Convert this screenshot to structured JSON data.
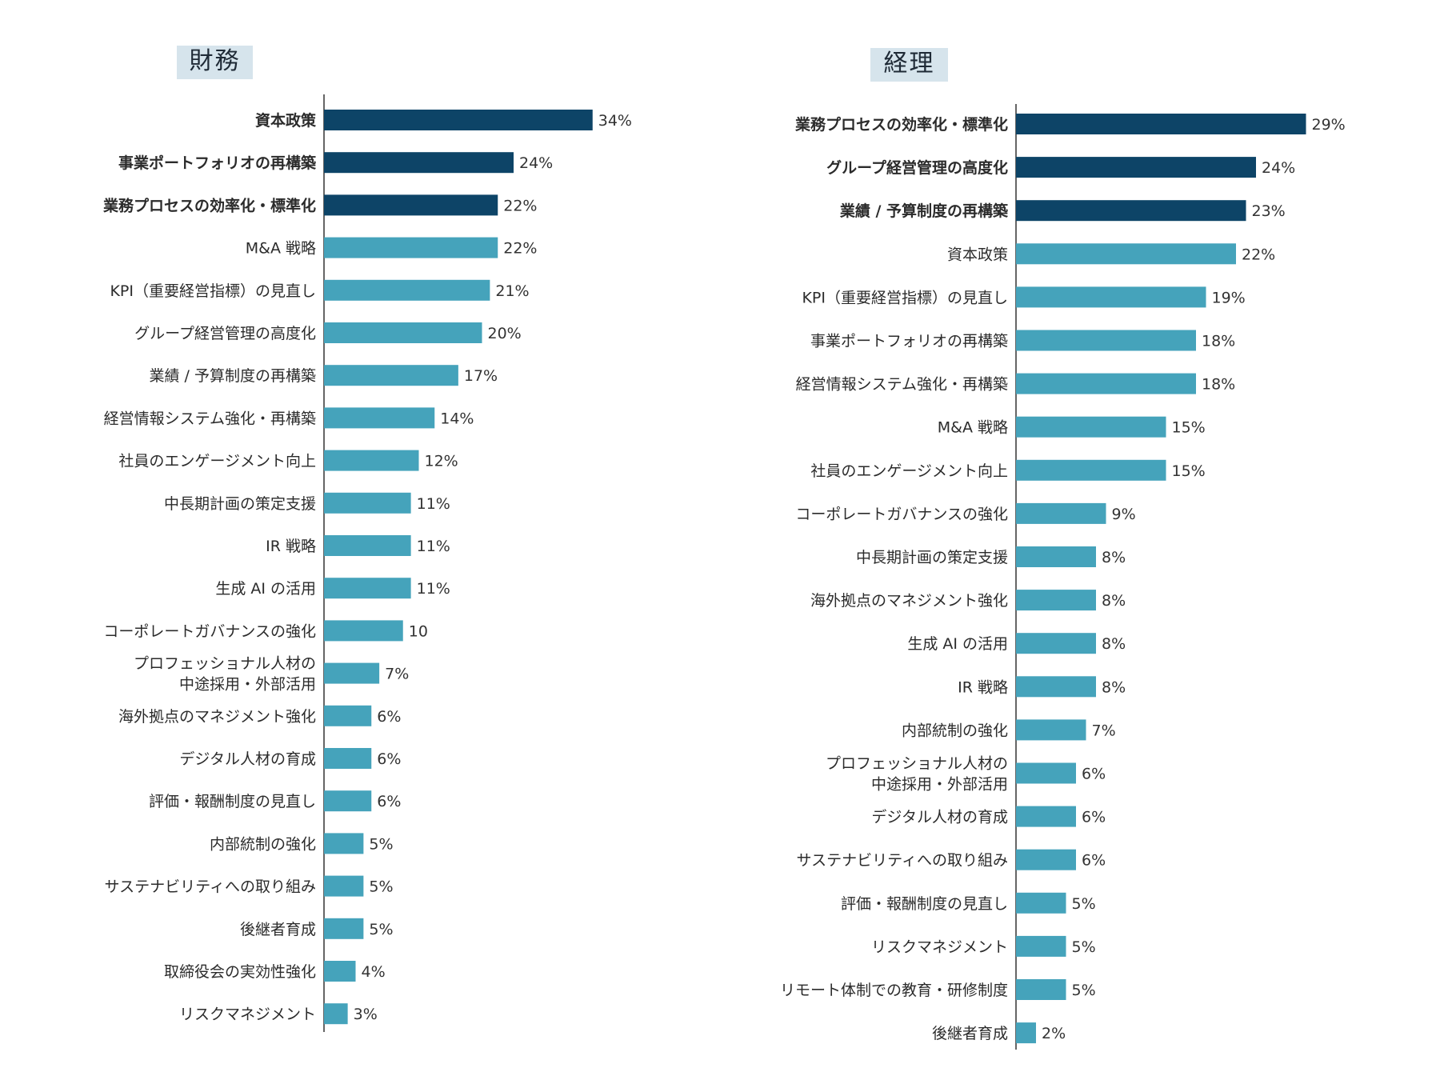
{
  "colors": {
    "highlight": "#0d4467",
    "normal": "#45a3bb",
    "axis": "#333333",
    "title_bg": "#d6e4ec"
  },
  "chart_data": [
    {
      "type": "bar",
      "orientation": "horizontal",
      "title": "財務",
      "categories": [
        "資本政策",
        "事業ポートフォリオの再構築",
        "業務プロセスの効率化・標準化",
        "M&A 戦略",
        "KPI（重要経営指標）の見直し",
        "グループ経営管理の高度化",
        "業績 / 予算制度の再構築",
        "経営情報システム強化・再構築",
        "社員のエンゲージメント向上",
        "中長期計画の策定支援",
        "IR 戦略",
        "生成 AI の活用",
        "コーポレートガバナンスの強化",
        [
          "プロフェッショナル人材の",
          "中途採用・外部活用"
        ],
        "海外拠点のマネジメント強化",
        "デジタル人材の育成",
        "評価・報酬制度の見直し",
        "内部統制の強化",
        "サステナビリティへの取り組み",
        "後継者育成",
        "取締役会の実効性強化",
        "リスクマネジメント"
      ],
      "values": [
        34,
        24,
        22,
        22,
        21,
        20,
        17,
        14,
        12,
        11,
        11,
        11,
        10,
        7,
        6,
        6,
        6,
        5,
        5,
        5,
        4,
        3
      ],
      "value_labels": [
        "34%",
        "24%",
        "22%",
        "22%",
        "21%",
        "20%",
        "17%",
        "14%",
        "12%",
        "11%",
        "11%",
        "11%",
        "10",
        "7%",
        "6%",
        "6%",
        "6%",
        "5%",
        "5%",
        "5%",
        "4%",
        "3%"
      ],
      "highlighted_top": 3,
      "xlim": [
        0,
        34
      ]
    },
    {
      "type": "bar",
      "orientation": "horizontal",
      "title": "経理",
      "categories": [
        "業務プロセスの効率化・標準化",
        "グループ経営管理の高度化",
        "業績 / 予算制度の再構築",
        "資本政策",
        "KPI（重要経営指標）の見直し",
        "事業ポートフォリオの再構築",
        "経営情報システム強化・再構築",
        "M&A 戦略",
        "社員のエンゲージメント向上",
        "コーポレートガバナンスの強化",
        "中長期計画の策定支援",
        "海外拠点のマネジメント強化",
        "生成 AI の活用",
        "IR 戦略",
        "内部統制の強化",
        [
          "プロフェッショナル人材の",
          "中途採用・外部活用"
        ],
        "デジタル人材の育成",
        "サステナビリティへの取り組み",
        "評価・報酬制度の見直し",
        "リスクマネジメント",
        "リモート体制での教育・研修制度",
        "後継者育成"
      ],
      "values": [
        29,
        24,
        23,
        22,
        19,
        18,
        18,
        15,
        15,
        9,
        8,
        8,
        8,
        8,
        7,
        6,
        6,
        6,
        5,
        5,
        5,
        2
      ],
      "value_labels": [
        "29%",
        "24%",
        "23%",
        "22%",
        "19%",
        "18%",
        "18%",
        "15%",
        "15%",
        "9%",
        "8%",
        "8%",
        "8%",
        "8%",
        "7%",
        "6%",
        "6%",
        "6%",
        "5%",
        "5%",
        "5%",
        "2%"
      ],
      "highlighted_top": 3,
      "xlim": [
        0,
        29
      ]
    }
  ]
}
